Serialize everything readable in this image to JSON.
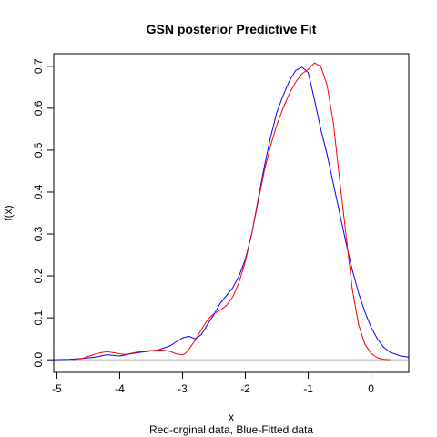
{
  "chart_data": {
    "type": "line",
    "title": "GSN posterior Predictive Fit",
    "xlabel": "x",
    "ylabel": "f(x)",
    "subtitle": "Red-orginal data, Blue-Fitted data",
    "xlim": [
      -5.05,
      0.6
    ],
    "ylim": [
      -0.03,
      0.73
    ],
    "x_ticks": [
      -5,
      -4,
      -3,
      -2,
      -1,
      0
    ],
    "x_tick_labels": [
      "-5",
      "-4",
      "-3",
      "-2",
      "-1",
      "0"
    ],
    "y_ticks": [
      0.0,
      0.1,
      0.2,
      0.3,
      0.4,
      0.5,
      0.6,
      0.7
    ],
    "y_tick_labels": [
      "0.0",
      "0.1",
      "0.2",
      "0.3",
      "0.4",
      "0.5",
      "0.6",
      "0.7"
    ],
    "baseline_y": 0,
    "baseline_color": "#b4b4b4",
    "grid": false,
    "series": [
      {
        "color": "#0000ff",
        "points": [
          [
            -5.05,
            0.0
          ],
          [
            -4.8,
            0.001
          ],
          [
            -4.6,
            0.003
          ],
          [
            -4.4,
            0.006
          ],
          [
            -4.2,
            0.012
          ],
          [
            -4.0,
            0.009
          ],
          [
            -3.8,
            0.015
          ],
          [
            -3.6,
            0.019
          ],
          [
            -3.4,
            0.023
          ],
          [
            -3.2,
            0.033
          ],
          [
            -3.1,
            0.043
          ],
          [
            -3.0,
            0.052
          ],
          [
            -2.9,
            0.056
          ],
          [
            -2.8,
            0.05
          ],
          [
            -2.7,
            0.06
          ],
          [
            -2.6,
            0.085
          ],
          [
            -2.5,
            0.108
          ],
          [
            -2.4,
            0.135
          ],
          [
            -2.3,
            0.153
          ],
          [
            -2.2,
            0.172
          ],
          [
            -2.1,
            0.2
          ],
          [
            -2.0,
            0.24
          ],
          [
            -1.9,
            0.3
          ],
          [
            -1.8,
            0.38
          ],
          [
            -1.7,
            0.46
          ],
          [
            -1.6,
            0.53
          ],
          [
            -1.5,
            0.59
          ],
          [
            -1.4,
            0.63
          ],
          [
            -1.3,
            0.665
          ],
          [
            -1.2,
            0.69
          ],
          [
            -1.1,
            0.698
          ],
          [
            -1.0,
            0.685
          ],
          [
            -0.9,
            0.62
          ],
          [
            -0.8,
            0.55
          ],
          [
            -0.7,
            0.49
          ],
          [
            -0.6,
            0.42
          ],
          [
            -0.5,
            0.35
          ],
          [
            -0.4,
            0.28
          ],
          [
            -0.3,
            0.215
          ],
          [
            -0.2,
            0.16
          ],
          [
            -0.1,
            0.115
          ],
          [
            0.0,
            0.078
          ],
          [
            0.1,
            0.05
          ],
          [
            0.2,
            0.03
          ],
          [
            0.3,
            0.018
          ],
          [
            0.45,
            0.01
          ],
          [
            0.6,
            0.006
          ]
        ]
      },
      {
        "color": "#ff0000",
        "points": [
          [
            -4.75,
            0.0
          ],
          [
            -4.6,
            0.003
          ],
          [
            -4.5,
            0.008
          ],
          [
            -4.4,
            0.013
          ],
          [
            -4.3,
            0.017
          ],
          [
            -4.2,
            0.019
          ],
          [
            -4.1,
            0.017
          ],
          [
            -4.0,
            0.014
          ],
          [
            -3.9,
            0.013
          ],
          [
            -3.8,
            0.016
          ],
          [
            -3.7,
            0.019
          ],
          [
            -3.6,
            0.021
          ],
          [
            -3.5,
            0.022
          ],
          [
            -3.4,
            0.023
          ],
          [
            -3.3,
            0.023
          ],
          [
            -3.2,
            0.02
          ],
          [
            -3.1,
            0.014
          ],
          [
            -3.0,
            0.012
          ],
          [
            -2.95,
            0.016
          ],
          [
            -2.9,
            0.025
          ],
          [
            -2.8,
            0.046
          ],
          [
            -2.7,
            0.072
          ],
          [
            -2.6,
            0.096
          ],
          [
            -2.5,
            0.11
          ],
          [
            -2.4,
            0.118
          ],
          [
            -2.3,
            0.13
          ],
          [
            -2.2,
            0.15
          ],
          [
            -2.1,
            0.185
          ],
          [
            -2.0,
            0.235
          ],
          [
            -1.9,
            0.3
          ],
          [
            -1.8,
            0.375
          ],
          [
            -1.7,
            0.45
          ],
          [
            -1.6,
            0.51
          ],
          [
            -1.5,
            0.56
          ],
          [
            -1.4,
            0.6
          ],
          [
            -1.3,
            0.635
          ],
          [
            -1.2,
            0.662
          ],
          [
            -1.1,
            0.682
          ],
          [
            -1.0,
            0.693
          ],
          [
            -0.9,
            0.708
          ],
          [
            -0.8,
            0.7
          ],
          [
            -0.7,
            0.655
          ],
          [
            -0.6,
            0.565
          ],
          [
            -0.5,
            0.43
          ],
          [
            -0.4,
            0.3
          ],
          [
            -0.3,
            0.17
          ],
          [
            -0.2,
            0.085
          ],
          [
            -0.1,
            0.038
          ],
          [
            0.0,
            0.015
          ],
          [
            0.1,
            0.005
          ],
          [
            0.2,
            0.001
          ],
          [
            0.3,
            0.0
          ]
        ]
      }
    ]
  }
}
